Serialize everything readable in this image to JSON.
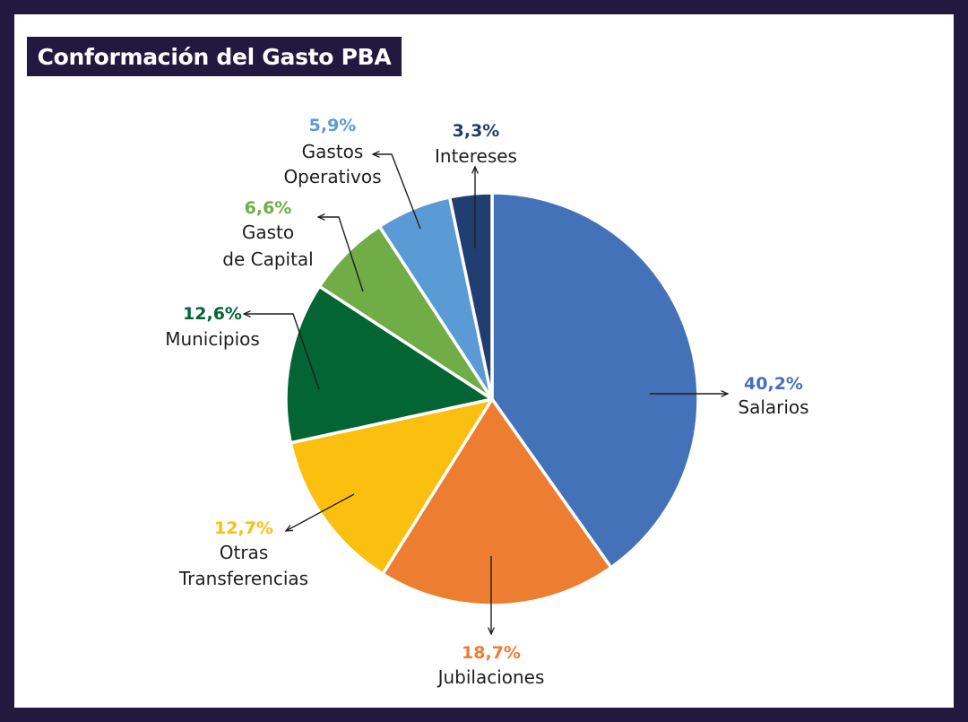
{
  "title": "Conformación del Gasto PBA",
  "colors": {
    "background": "#21193f",
    "frame": "#ffffff",
    "title_bg": "#21193f"
  },
  "chart_data": {
    "type": "pie",
    "title": "Conformación del Gasto PBA",
    "start_angle_deg": 0,
    "direction": "clockwise",
    "slices": [
      {
        "label": [
          "Salarios"
        ],
        "value": 40.2,
        "value_label": "40,2%",
        "color": "#4472b8"
      },
      {
        "label": [
          "Jubilaciones"
        ],
        "value": 18.7,
        "value_label": "18,7%",
        "color": "#ed7d31"
      },
      {
        "label": [
          "Otras",
          "Transferencias"
        ],
        "value": 12.7,
        "value_label": "12,7%",
        "color": "#fbbf10"
      },
      {
        "label": [
          "Municipios"
        ],
        "value": 12.6,
        "value_label": "12,6%",
        "color": "#036434"
      },
      {
        "label": [
          "Gasto",
          "de Capital"
        ],
        "value": 6.6,
        "value_label": "6,6%",
        "color": "#70ad47"
      },
      {
        "label": [
          "Gastos",
          "Operativos"
        ],
        "value": 5.9,
        "value_label": "5,9%",
        "color": "#5b9bd5"
      },
      {
        "label": [
          "Intereses"
        ],
        "value": 3.3,
        "value_label": "3,3%",
        "color": "#203e70"
      }
    ]
  }
}
